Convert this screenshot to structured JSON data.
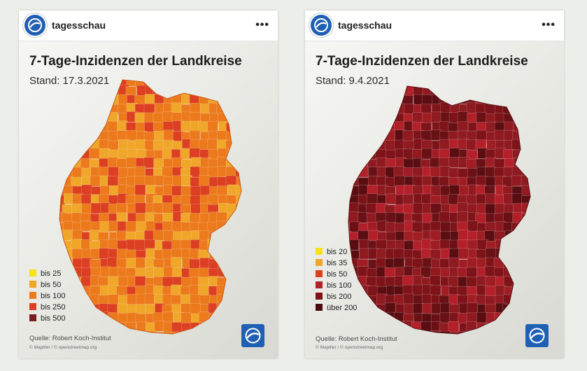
{
  "posts": [
    {
      "account": "tagesschau",
      "more": "•••",
      "title": "7-Tage-Inzidenzen der Landkreise",
      "date_line": "Stand: 17.3.2021",
      "legend": [
        {
          "label": "bis 25",
          "color": "#f5e21a"
        },
        {
          "label": "bis 50",
          "color": "#f0a628"
        },
        {
          "label": "bis 100",
          "color": "#ec7a1c"
        },
        {
          "label": "bis 250",
          "color": "#dc3f22"
        },
        {
          "label": "bis 500",
          "color": "#7a1f1d"
        }
      ],
      "source": "Quelle: Robert Koch-Institut",
      "attribution": "© Maptiler / © openstreetmap.org",
      "map_palette": [
        "#ec7a1c",
        "#ec7a1c",
        "#f0a628",
        "#dc3f22",
        "#ec7a1c",
        "#f0a628",
        "#dc3f22",
        "#ec7a1c"
      ]
    },
    {
      "account": "tagesschau",
      "more": "•••",
      "title": "7-Tage-Inzidenzen der Landkreise",
      "date_line": "Stand: 9.4.2021",
      "legend": [
        {
          "label": "bis 20",
          "color": "#f5e21a"
        },
        {
          "label": "bis 35",
          "color": "#f0a628"
        },
        {
          "label": "bis 50",
          "color": "#dc3f22"
        },
        {
          "label": "bis 100",
          "color": "#b3202a"
        },
        {
          "label": "bis 200",
          "color": "#7e1419"
        },
        {
          "label": "über 200",
          "color": "#4a0b0e"
        }
      ],
      "source": "Quelle: Robert Koch-Institut",
      "attribution": "© Maptiler / © openstreetmap.org",
      "map_palette": [
        "#8f1a20",
        "#7e1419",
        "#a01d24",
        "#6a1116",
        "#8f1a20",
        "#b3202a",
        "#7e1419",
        "#5a0e12"
      ]
    }
  ]
}
